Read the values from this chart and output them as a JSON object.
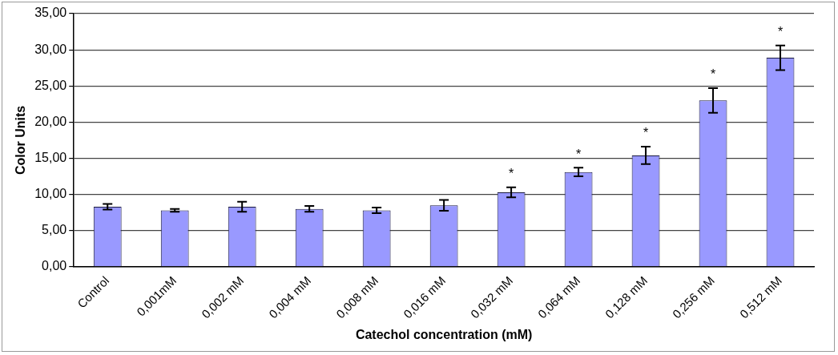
{
  "chart_data": {
    "type": "bar",
    "xlabel": "Catechol concentration (mM)",
    "ylabel": "Color Units",
    "categories": [
      "Control",
      "0,001mM",
      "0,002 mM",
      "0,004 mM",
      "0,008 mM",
      "0,016 mM",
      "0,032 mM",
      "0,064 mM",
      "0,128 mM",
      "0,256 mM",
      "0,512 mM"
    ],
    "values": [
      8.3,
      7.8,
      8.3,
      8.0,
      7.8,
      8.5,
      10.3,
      13.1,
      15.4,
      23.0,
      28.9
    ],
    "errors": [
      0.4,
      0.2,
      0.7,
      0.4,
      0.4,
      0.75,
      0.7,
      0.6,
      1.2,
      1.7,
      1.7
    ],
    "color": "#9999ff",
    "ylim": [
      0,
      35
    ],
    "yticks": [
      {
        "value": 0,
        "label": "0,00"
      },
      {
        "value": 5,
        "label": "5,00"
      },
      {
        "value": 10,
        "label": "10,00"
      },
      {
        "value": 15,
        "label": "15,00"
      },
      {
        "value": 20,
        "label": "20,00"
      },
      {
        "value": 25,
        "label": "25,00"
      },
      {
        "value": 30,
        "label": "30,00"
      },
      {
        "value": 35,
        "label": "35,00"
      }
    ],
    "grid": "y",
    "legend": false,
    "annotations": [
      {
        "text": "*",
        "x": "0,032 mM",
        "y": 10.3
      },
      {
        "text": "*",
        "x": "0,064 mM",
        "y": 13.1
      },
      {
        "text": "*",
        "x": "0,128 mM",
        "y": 15.4
      },
      {
        "text": "*",
        "x": "0,256 mM",
        "y": 23.0
      },
      {
        "text": "*",
        "x": "0,512 mM",
        "y": 28.9
      }
    ]
  }
}
